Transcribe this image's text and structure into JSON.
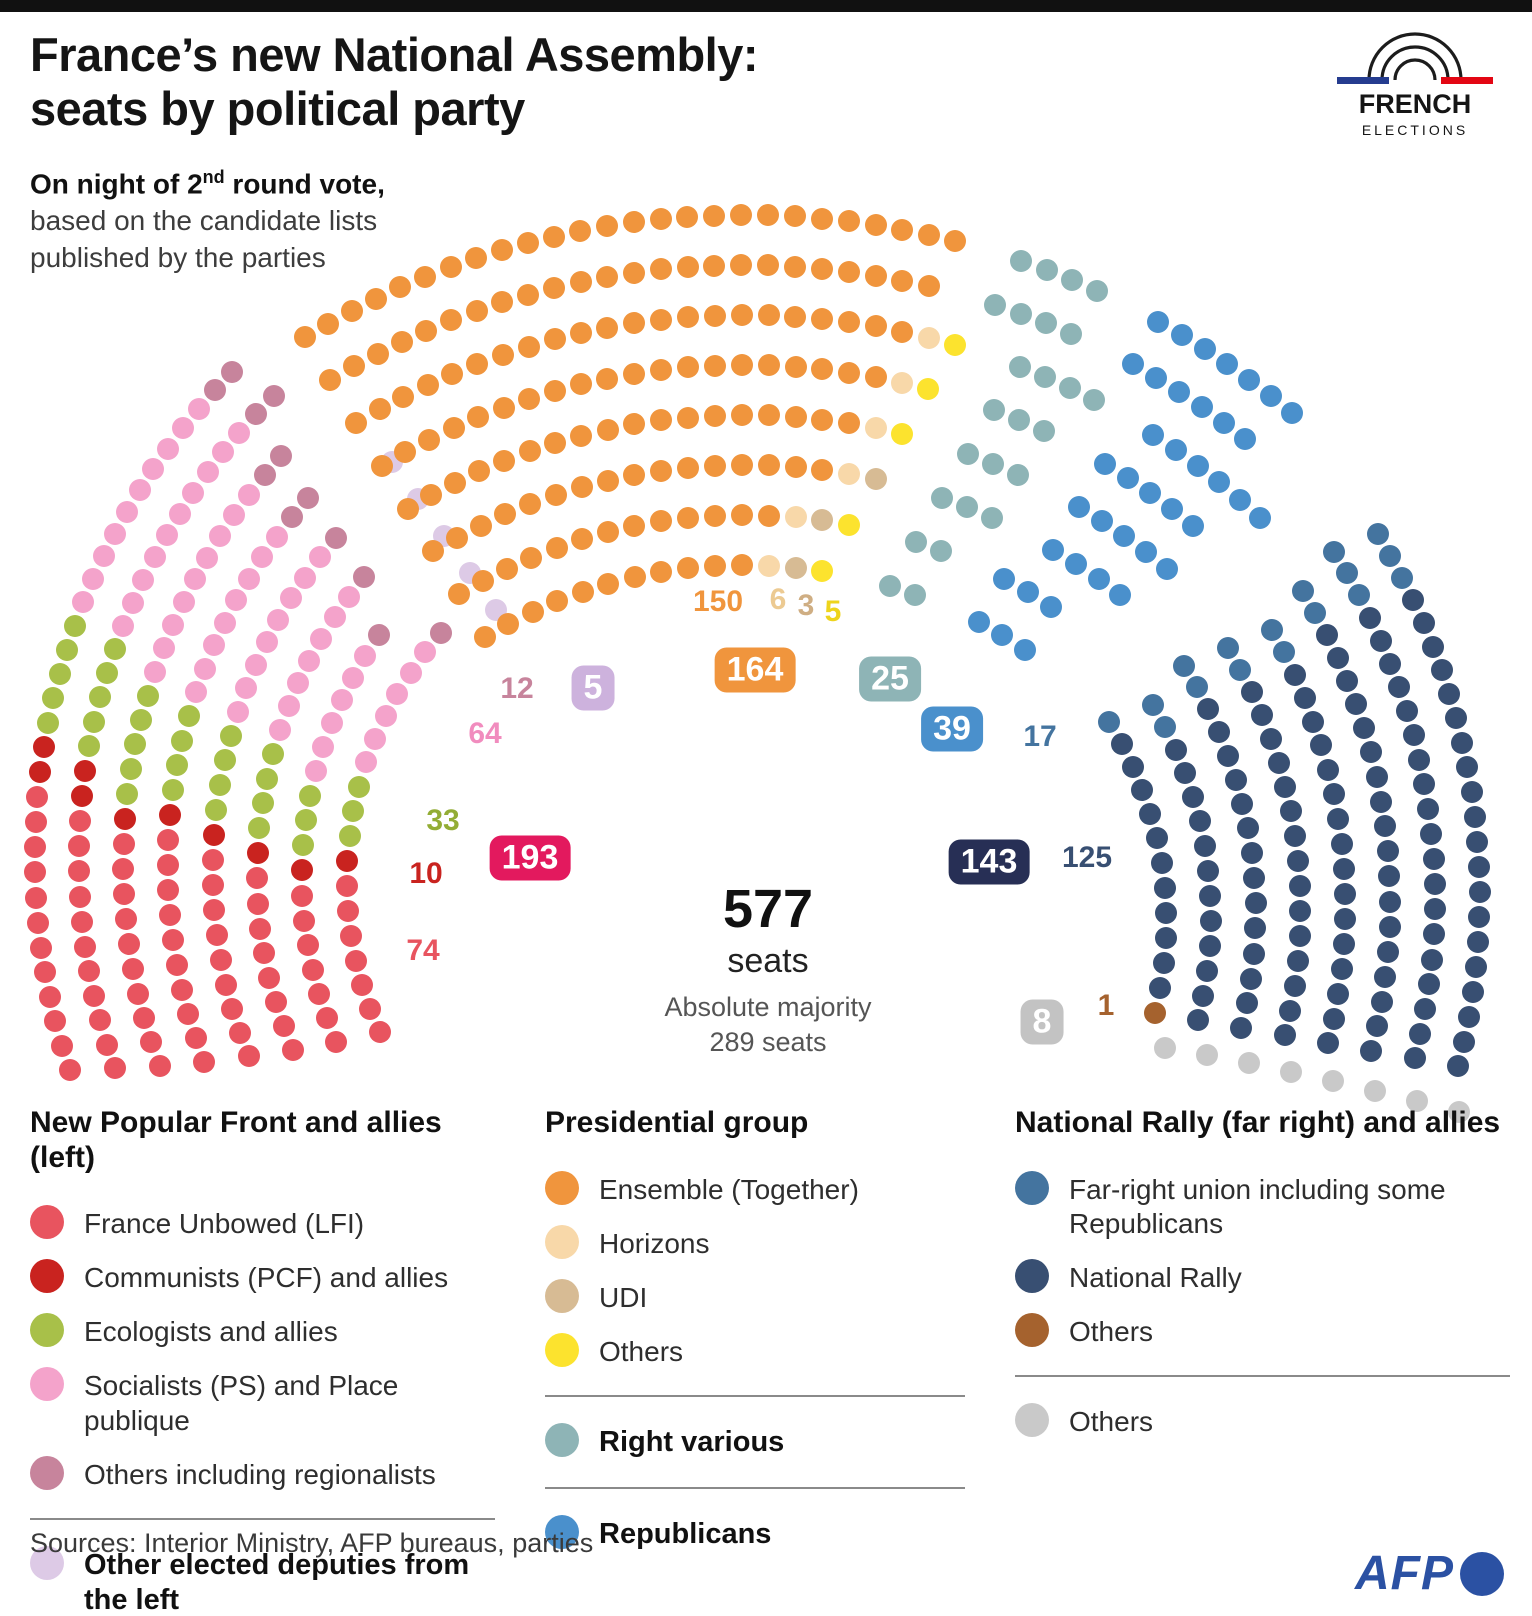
{
  "title": {
    "line1": "France’s new National Assembly:",
    "line2": "seats by political party"
  },
  "subtitle": {
    "bold_pre": "On night of 2",
    "bold_sup": "nd",
    "bold_post": " round vote,",
    "line2": "based on the candidate lists",
    "line3": "published by the parties"
  },
  "logo": {
    "top": "FRENCH",
    "bottom": "ELECTIONS",
    "blue": "#253c8f",
    "red": "#e30613"
  },
  "center": {
    "total": "577",
    "total_label": "seats",
    "majority_line1": "Absolute majority",
    "majority_line2": "289 seats"
  },
  "sources": "Sources: Interior Ministry, AFP bureaus, parties",
  "afp": {
    "label": "AFP",
    "color": "#2b51a3"
  },
  "chart_data": {
    "type": "parliament",
    "total_seats": 577,
    "absolute_majority": 289,
    "blocks": [
      {
        "name": "New Popular Front and allies (left)",
        "total": 193,
        "parties": [
          {
            "key": "lfi",
            "label": "France Unbowed (LFI)",
            "seats": 74,
            "color": "#e8545f"
          },
          {
            "key": "pcf",
            "label": "Communists (PCF) and allies",
            "seats": 10,
            "color": "#c9231f"
          },
          {
            "key": "eco",
            "label": "Ecologists and allies",
            "seats": 33,
            "color": "#a8c049"
          },
          {
            "key": "ps",
            "label": "Socialists (PS) and Place publique",
            "seats": 64,
            "color": "#f4a3cb"
          },
          {
            "key": "other_left_reg",
            "label": "Others including regionalists",
            "seats": 12,
            "color": "#c7849c"
          }
        ]
      },
      {
        "name": "Other elected deputies from the left",
        "total": 5,
        "parties": [
          {
            "key": "other_left",
            "label": "Other elected deputies from the left",
            "seats": 5,
            "color": "#ddcae6"
          }
        ]
      },
      {
        "name": "Presidential group",
        "total": 164,
        "parties": [
          {
            "key": "ensemble",
            "label": "Ensemble (Together)",
            "seats": 150,
            "color": "#f0953d"
          },
          {
            "key": "horizons",
            "label": "Horizons",
            "seats": 6,
            "color": "#f8d8a9"
          },
          {
            "key": "udi",
            "label": "UDI",
            "seats": 3,
            "color": "#d7bb94"
          },
          {
            "key": "others_pres",
            "label": "Others",
            "seats": 5,
            "color": "#fce32e"
          }
        ]
      },
      {
        "name": "Right various",
        "total": 25,
        "parties": [
          {
            "key": "right_various",
            "label": "Right various",
            "seats": 25,
            "color": "#8eb4b6"
          }
        ]
      },
      {
        "name": "Republicans",
        "total": 39,
        "parties": [
          {
            "key": "republicans",
            "label": "Republicans",
            "seats": 39,
            "color": "#4a90cc"
          }
        ]
      },
      {
        "name": "National Rally (far right) and allies",
        "total": 143,
        "parties": [
          {
            "key": "far_right_union",
            "label": "Far-right union including some Republicans",
            "seats": 17,
            "color": "#44749f"
          },
          {
            "key": "national_rally",
            "label": "National Rally",
            "seats": 125,
            "color": "#384f72"
          },
          {
            "key": "others_far_right",
            "label": "Others",
            "seats": 1,
            "color": "#a5622e"
          }
        ]
      },
      {
        "name": "Others",
        "total": 8,
        "parties": [
          {
            "key": "others",
            "label": "Others",
            "seats": 8,
            "color": "#c9c9c9"
          }
        ]
      }
    ],
    "seat_labels": [
      {
        "id": "lfi",
        "text": "74",
        "style": "plain"
      },
      {
        "id": "pcf",
        "text": "10",
        "style": "plain"
      },
      {
        "id": "eco",
        "text": "33",
        "style": "plain"
      },
      {
        "id": "ps",
        "text": "64",
        "style": "plain"
      },
      {
        "id": "other_left_reg",
        "text": "12",
        "style": "plain"
      },
      {
        "id": "other_left",
        "text": "5",
        "style": "badge"
      },
      {
        "id": "npf_total",
        "text": "193",
        "style": "badge"
      },
      {
        "id": "ensemble",
        "text": "150",
        "style": "plain"
      },
      {
        "id": "horizons",
        "text": "6",
        "style": "plain"
      },
      {
        "id": "udi",
        "text": "3",
        "style": "plain"
      },
      {
        "id": "others_pres",
        "text": "5",
        "style": "plain"
      },
      {
        "id": "presidential_total",
        "text": "164",
        "style": "badge"
      },
      {
        "id": "right_various",
        "text": "25",
        "style": "badge"
      },
      {
        "id": "republicans",
        "text": "39",
        "style": "badge"
      },
      {
        "id": "far_right_union",
        "text": "17",
        "style": "plain"
      },
      {
        "id": "national_rally",
        "text": "125",
        "style": "plain"
      },
      {
        "id": "others_far_right",
        "text": "1",
        "style": "plain"
      },
      {
        "id": "nr_total",
        "text": "143",
        "style": "badge"
      },
      {
        "id": "others",
        "text": "8",
        "style": "badge"
      }
    ],
    "badge_colors": {
      "npf_total": "#e3195e",
      "presidential_total": "#f0953d",
      "right_various": "#8eb4b6",
      "republicans": "#4a90cc",
      "other_left": "#cdb2dd",
      "nr_total": "#272f55",
      "others": "#c3c3c3"
    }
  },
  "legend": {
    "columns": [
      {
        "header": "New Popular Front and allies (left)",
        "sections": [
          {
            "items": [
              {
                "key": "lfi",
                "label": "France Unbowed (LFI)"
              },
              {
                "key": "pcf",
                "label": "Communists (PCF) and allies"
              },
              {
                "key": "eco",
                "label": "Ecologists and allies"
              },
              {
                "key": "ps",
                "label": "Socialists (PS) and Place publique"
              },
              {
                "key": "other_left_reg",
                "label": "Others including regionalists"
              }
            ]
          },
          {
            "items": [
              {
                "key": "other_left",
                "label": "Other elected deputies from the left",
                "bold": true
              }
            ]
          }
        ]
      },
      {
        "header": "Presidential group",
        "sections": [
          {
            "items": [
              {
                "key": "ensemble",
                "label": "Ensemble (Together)"
              },
              {
                "key": "horizons",
                "label": "Horizons"
              },
              {
                "key": "udi",
                "label": "UDI"
              },
              {
                "key": "others_pres",
                "label": "Others"
              }
            ]
          },
          {
            "items": [
              {
                "key": "right_various",
                "label": "Right various",
                "bold": true
              }
            ]
          },
          {
            "items": [
              {
                "key": "republicans",
                "label": "Republicans",
                "bold": true
              }
            ]
          }
        ]
      },
      {
        "header": "National Rally (far right) and allies",
        "sections": [
          {
            "items": [
              {
                "key": "far_right_union",
                "label": "Far-right union including some Republicans"
              },
              {
                "key": "national_rally",
                "label": "National Rally"
              },
              {
                "key": "others_far_right",
                "label": "Others"
              }
            ]
          },
          {
            "items": [
              {
                "key": "others",
                "label": "Others"
              }
            ]
          }
        ]
      }
    ]
  }
}
